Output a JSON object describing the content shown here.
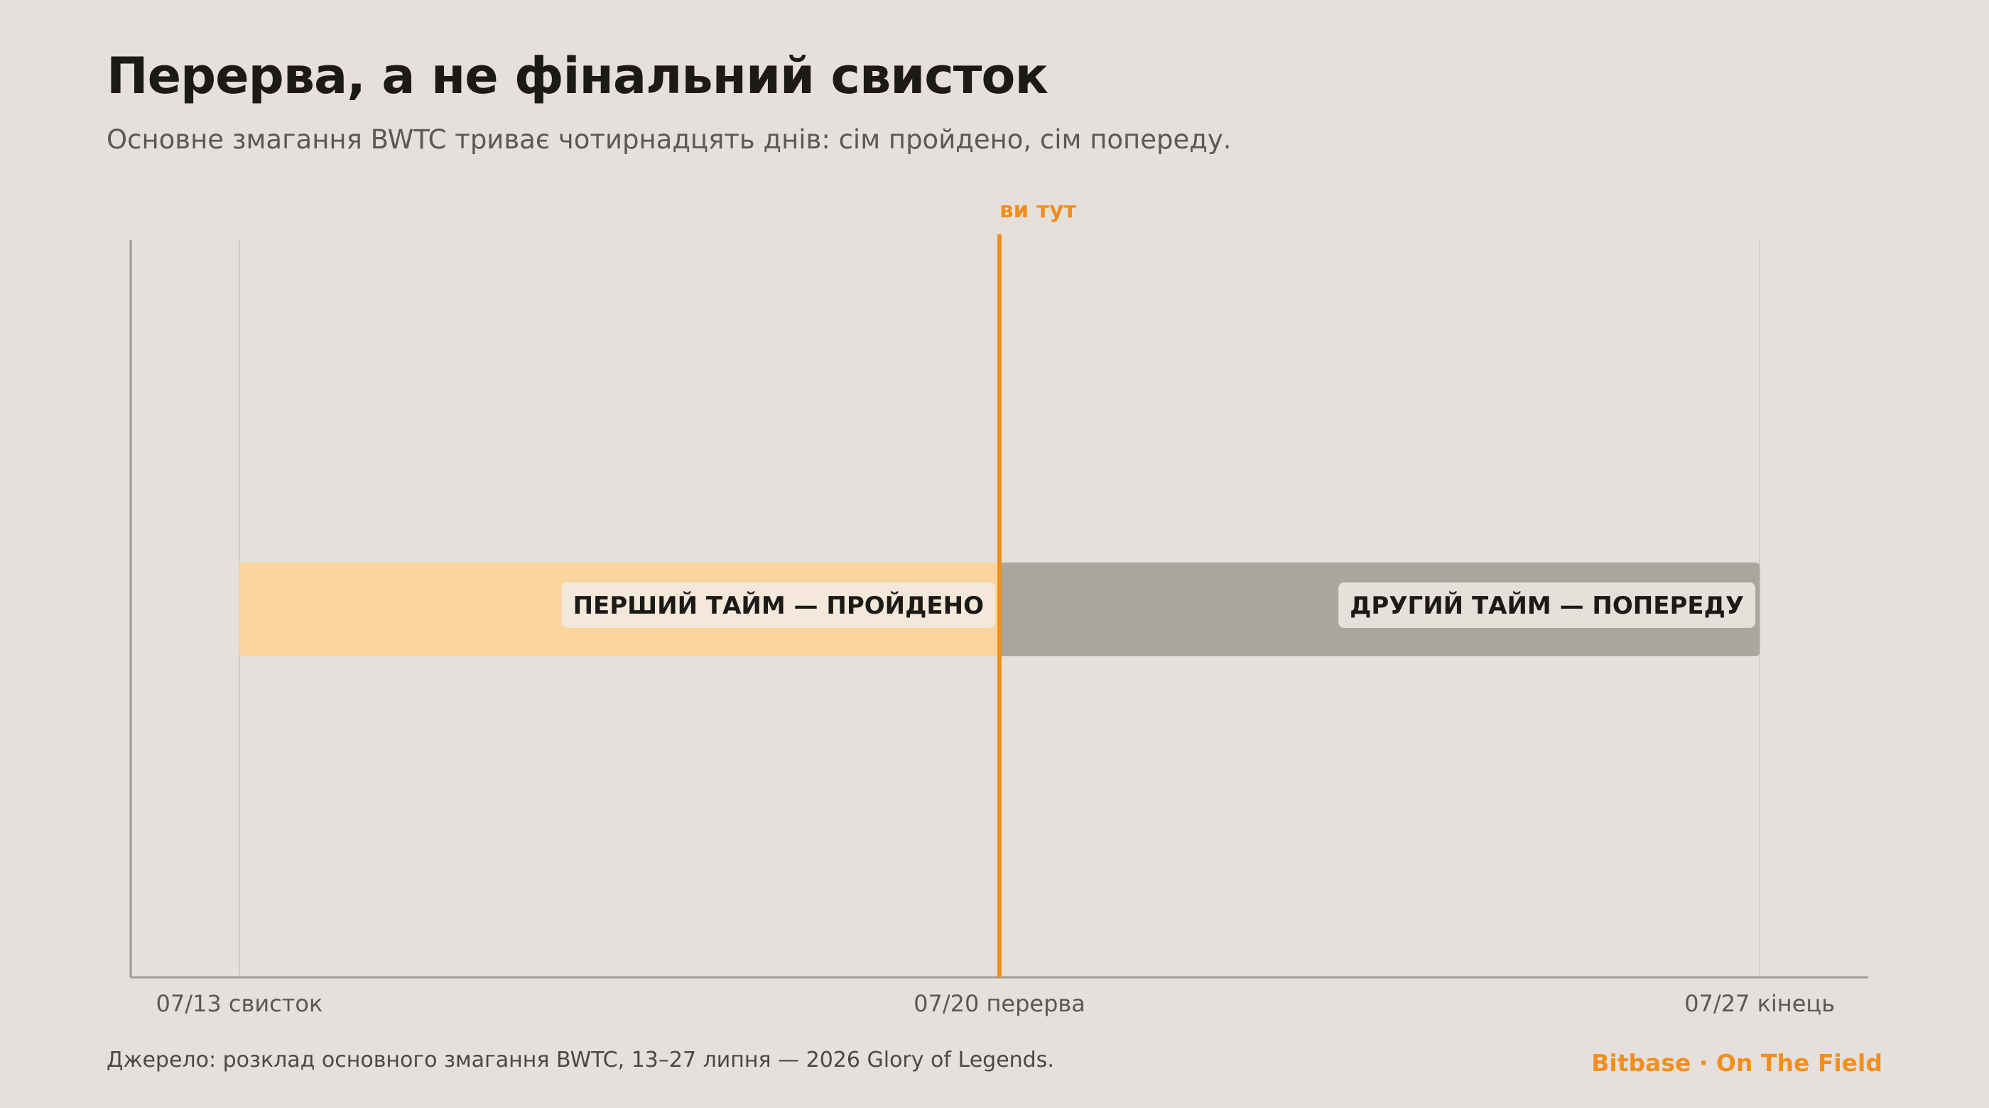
{
  "header": {
    "title": "Перерва, а не фінальний свисток",
    "subtitle": "Основне змагання BWTC триває чотирнадцять днів: сім пройдено, сім попереду."
  },
  "footer": {
    "source": "Джерело: розклад основного змагання BWTC, 13–27 липня — 2026 Glory of Legends.",
    "brand": "Bitbase · On The Field"
  },
  "colors": {
    "background": "#e5e0db",
    "completed": "#fad59f",
    "remaining": "#aaa59f",
    "accent": "#f08f20",
    "label_bg": "#f3e8da",
    "grid": "#d1ccc6",
    "axis": "#a19c96",
    "tick_text": "#5c5852"
  },
  "chart_data": {
    "type": "bar",
    "orientation": "horizontal",
    "stacked": true,
    "x_axis_type": "date",
    "xlim": [
      "2026-07-12",
      "2026-07-28"
    ],
    "segments": [
      {
        "label": "ПЕРШИЙ ТАЙМ — ПРОЙДЕНО",
        "start": "2026-07-13",
        "end": "2026-07-20",
        "color": "#fad59f"
      },
      {
        "label": "ДРУГИЙ ТАЙМ — ПОПЕРЕДУ",
        "start": "2026-07-20",
        "end": "2026-07-27",
        "color": "#aaa59f"
      }
    ],
    "marker": {
      "date": "2026-07-20",
      "label": "ви тут",
      "color": "#f08f20"
    },
    "ticks": [
      {
        "date": "2026-07-13",
        "label": "07/13 свисток"
      },
      {
        "date": "2026-07-20",
        "label": "07/20 перерва"
      },
      {
        "date": "2026-07-27",
        "label": "07/27 кінець"
      }
    ],
    "grid": true
  }
}
